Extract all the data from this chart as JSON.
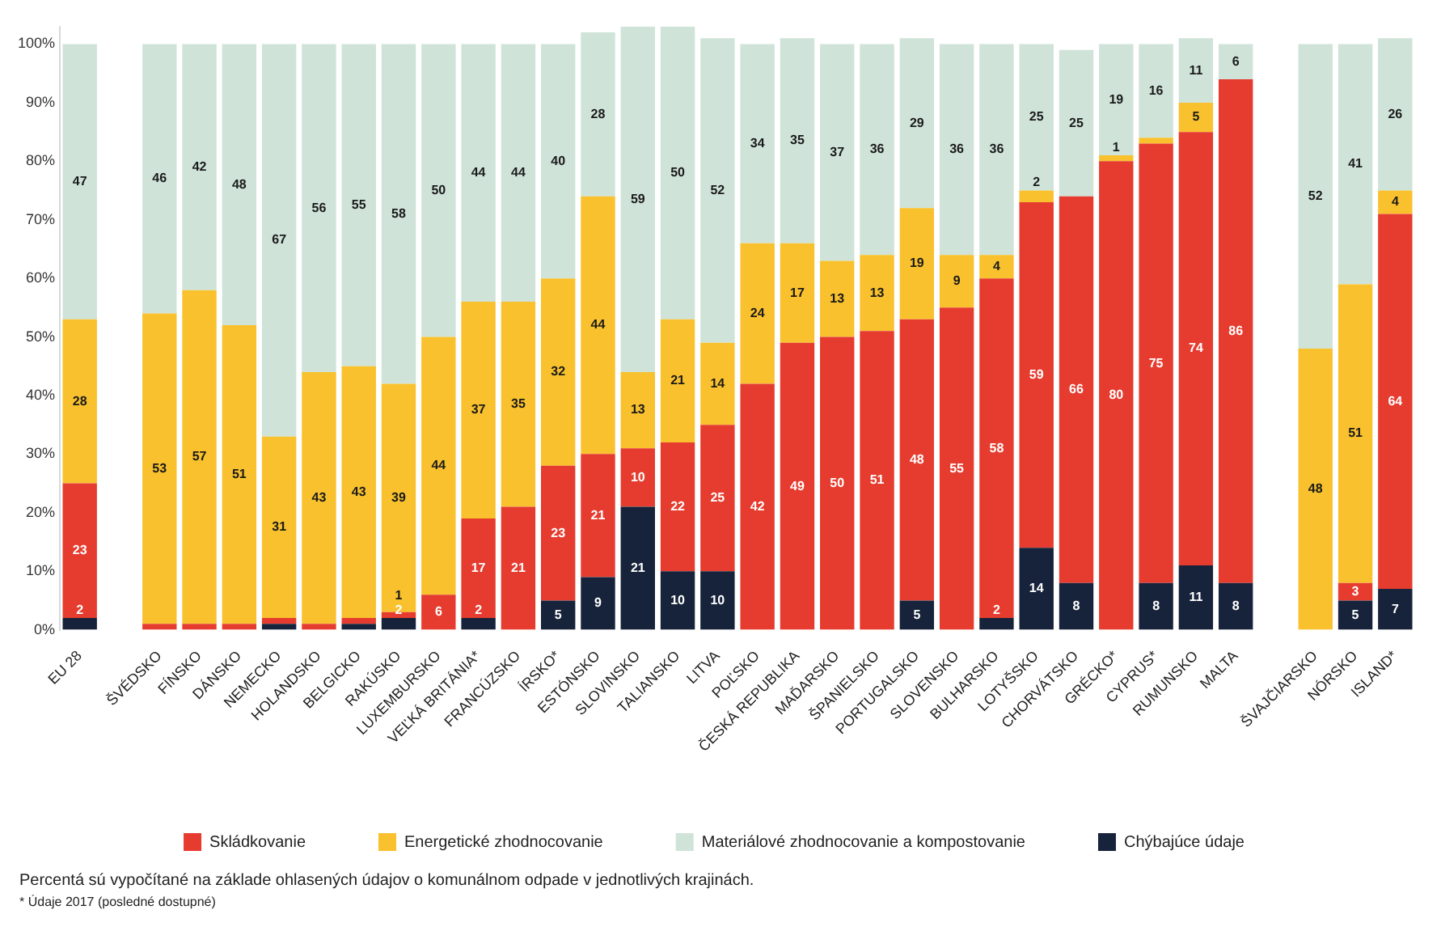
{
  "chart_data": {
    "type": "bar",
    "stacked": true,
    "categories": [
      "EU 28",
      null,
      "ŠVÉDSKO",
      "FÍNSKO",
      "DÁNSKO",
      "NEMECKO",
      "HOLANDSKO",
      "BELGICKO",
      "RAKÚSKO",
      "LUXEMBURSKO",
      "VEĽKÁ BRITÁNIA*",
      "FRANCÚZSKO",
      "ÍRSKO*",
      "ESTÓNSKO",
      "SLOVINSKO",
      "TALIANSKO",
      "LITVA",
      "POĽSKO",
      "ČESKÁ REPUBLIKA",
      "MAĎARSKO",
      "ŠPANIELSKO",
      "PORTUGALSKO",
      "SLOVENSKO",
      "BULHARSKO",
      "LOTYŠSKO",
      "CHORVÁTSKO",
      "GRÉCKO*",
      "CYPRUS*",
      "RUMUNSKO",
      "MALTA",
      null,
      "ŠVAJČIARSKO",
      "NÓRSKO",
      "ISLAND*"
    ],
    "series": [
      {
        "name": "Chýbajúce údaje",
        "color": "#17233b",
        "values": [
          2,
          null,
          null,
          null,
          null,
          1,
          null,
          1,
          2,
          null,
          2,
          null,
          5,
          9,
          21,
          10,
          10,
          null,
          null,
          null,
          null,
          5,
          null,
          2,
          14,
          8,
          null,
          8,
          11,
          8,
          null,
          null,
          5,
          7
        ],
        "value_labels": [
          "2",
          null,
          null,
          null,
          null,
          null,
          null,
          null,
          "2",
          null,
          "2",
          null,
          "5",
          "9",
          "21",
          "10",
          "10",
          null,
          null,
          null,
          null,
          "5",
          null,
          "2",
          "14",
          "8",
          null,
          "8",
          "11",
          "8",
          null,
          null,
          "5",
          "7"
        ]
      },
      {
        "name": "Skládkovanie",
        "color": "#e63c2f",
        "values": [
          23,
          null,
          1,
          1,
          1,
          1,
          1,
          1,
          1,
          6,
          17,
          21,
          23,
          21,
          10,
          22,
          25,
          42,
          49,
          50,
          51,
          48,
          55,
          58,
          59,
          66,
          80,
          75,
          74,
          86,
          null,
          null,
          3,
          64
        ],
        "value_labels": [
          "23",
          null,
          null,
          null,
          null,
          null,
          null,
          null,
          "1",
          "6",
          "17",
          "21",
          "23",
          "21",
          "10",
          "22",
          "25",
          "42",
          "49",
          "50",
          "51",
          "48",
          "55",
          "58",
          "59",
          "66",
          "80",
          "75",
          "74",
          "86",
          null,
          null,
          "3",
          "64"
        ]
      },
      {
        "name": "Energetické zhodnocovanie",
        "color": "#f8c12d",
        "values": [
          28,
          null,
          53,
          57,
          51,
          31,
          43,
          43,
          39,
          44,
          37,
          35,
          32,
          44,
          13,
          21,
          14,
          24,
          17,
          13,
          13,
          19,
          9,
          4,
          2,
          null,
          1,
          1,
          5,
          null,
          null,
          48,
          51,
          4
        ],
        "value_labels": [
          "28",
          null,
          "53",
          "57",
          "51",
          "31",
          "43",
          "43",
          "39",
          "44",
          "37",
          "35",
          "32",
          "44",
          "13",
          "21",
          "14",
          "24",
          "17",
          "13",
          "13",
          "19",
          "9",
          "4",
          "2",
          null,
          "1",
          null,
          "5",
          null,
          null,
          "48",
          "51",
          "4"
        ]
      },
      {
        "name": "Materiálové zhodnocovanie a kompostovanie",
        "color": "#cfe3d9",
        "values": [
          47,
          null,
          46,
          42,
          48,
          67,
          56,
          55,
          58,
          50,
          44,
          44,
          40,
          28,
          59,
          50,
          52,
          34,
          35,
          37,
          36,
          29,
          36,
          36,
          25,
          25,
          19,
          16,
          11,
          6,
          null,
          52,
          41,
          26
        ],
        "value_labels": [
          "47",
          null,
          "46",
          "42",
          "48",
          "67",
          "56",
          "55",
          "58",
          "50",
          "44",
          "44",
          "40",
          "28",
          "59",
          "50",
          "52",
          "34",
          "35",
          "37",
          "36",
          "29",
          "36",
          "36",
          "25",
          "25",
          "19",
          "16",
          "11",
          "6",
          null,
          "52",
          "41",
          "26"
        ]
      }
    ],
    "ylim": [
      0,
      103
    ],
    "yticks": [
      {
        "value": 0,
        "label": "0%"
      },
      {
        "value": 10,
        "label": "10%"
      },
      {
        "value": 20,
        "label": "20%"
      },
      {
        "value": 30,
        "label": "30%"
      },
      {
        "value": 40,
        "label": "40%"
      },
      {
        "value": 50,
        "label": "50%"
      },
      {
        "value": 60,
        "label": "60%"
      },
      {
        "value": 70,
        "label": "70%"
      },
      {
        "value": 80,
        "label": "80%"
      },
      {
        "value": 90,
        "label": "90%"
      },
      {
        "value": 100,
        "label": "100%"
      }
    ],
    "legend": "bottom",
    "annotations": [
      "Percentá sú vypočítané na základe ohlasených údajov o komunálnom odpade v jednotlivých krajinách.",
      "* Údaje 2017 (posledné dostupné)"
    ]
  }
}
